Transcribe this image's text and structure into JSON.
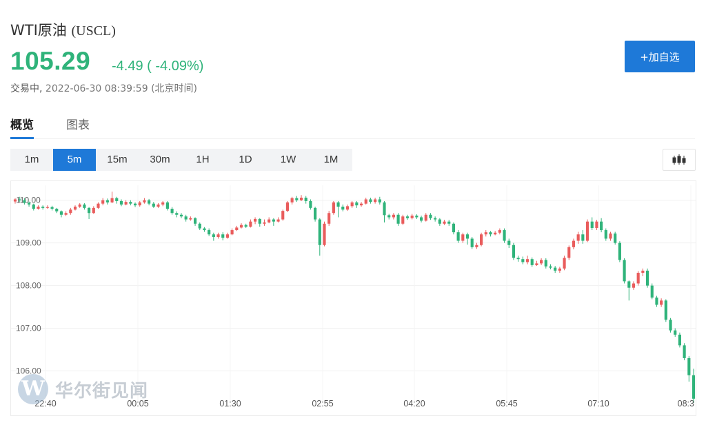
{
  "header": {
    "name": "WTI原油",
    "symbol": "(USCL)",
    "price": "105.29",
    "change": "-4.49 ( -4.09%)",
    "status": "交易中,",
    "timestamp": "2022-06-30 08:39:59",
    "timezone": "(北京时间)",
    "add_button": "+加自选",
    "up_color": "#e95c5c",
    "down_color": "#2fb37a"
  },
  "tabs": [
    {
      "label": "概览",
      "active": true
    },
    {
      "label": "图表",
      "active": false
    }
  ],
  "intervals": [
    {
      "label": "1m",
      "active": false
    },
    {
      "label": "5m",
      "active": true
    },
    {
      "label": "15m",
      "active": false
    },
    {
      "label": "30m",
      "active": false
    },
    {
      "label": "1H",
      "active": false
    },
    {
      "label": "1D",
      "active": false
    },
    {
      "label": "1W",
      "active": false
    },
    {
      "label": "1M",
      "active": false
    }
  ],
  "chart_type_icon": "candlestick-icon",
  "watermark": {
    "logo_letter": "W",
    "text": "华尔街见闻"
  },
  "chart_data": {
    "type": "candlestick",
    "x_tick_labels": [
      "22:40",
      "00:05",
      "01:30",
      "02:55",
      "04:20",
      "05:45",
      "07:10",
      "08:3"
    ],
    "y_ticks": [
      106.0,
      107.0,
      108.0,
      109.0,
      110.0
    ],
    "y_tick_labels": [
      "106.00",
      "107.00",
      "108.00",
      "109.00",
      "110.00"
    ],
    "ylim": [
      105.25,
      110.35
    ],
    "grid": true,
    "last_price": 105.29,
    "candles": [
      [
        109.97,
        110.02,
        109.92,
        110.05
      ],
      [
        110.02,
        110.0,
        109.96,
        110.08
      ],
      [
        110.0,
        109.94,
        109.9,
        110.05
      ],
      [
        109.94,
        109.9,
        109.85,
        109.97
      ],
      [
        109.9,
        109.8,
        109.76,
        109.92
      ],
      [
        109.8,
        109.85,
        109.78,
        109.88
      ],
      [
        109.85,
        109.82,
        109.78,
        109.88
      ],
      [
        109.82,
        109.84,
        109.8,
        109.88
      ],
      [
        109.84,
        109.8,
        109.76,
        109.87
      ],
      [
        109.8,
        109.74,
        109.7,
        109.82
      ],
      [
        109.74,
        109.66,
        109.6,
        109.76
      ],
      [
        109.66,
        109.7,
        109.63,
        109.74
      ],
      [
        109.7,
        109.78,
        109.66,
        109.82
      ],
      [
        109.78,
        109.85,
        109.76,
        109.88
      ],
      [
        109.85,
        109.9,
        109.82,
        109.93
      ],
      [
        109.9,
        109.82,
        109.78,
        109.93
      ],
      [
        109.82,
        109.7,
        109.56,
        109.84
      ],
      [
        109.7,
        109.82,
        109.68,
        109.86
      ],
      [
        109.82,
        109.92,
        109.8,
        109.95
      ],
      [
        109.92,
        110.0,
        109.88,
        110.05
      ],
      [
        110.0,
        109.95,
        109.9,
        110.04
      ],
      [
        109.95,
        110.05,
        109.93,
        110.2
      ],
      [
        110.05,
        109.98,
        109.92,
        110.08
      ],
      [
        109.98,
        109.9,
        109.86,
        110.02
      ],
      [
        109.9,
        109.96,
        109.88,
        110.0
      ],
      [
        109.96,
        109.92,
        109.88,
        110.0
      ],
      [
        109.92,
        109.88,
        109.84,
        109.95
      ],
      [
        109.88,
        109.95,
        109.85,
        109.98
      ],
      [
        109.95,
        110.0,
        109.92,
        110.05
      ],
      [
        110.0,
        109.92,
        109.88,
        110.03
      ],
      [
        109.92,
        109.85,
        109.82,
        109.96
      ],
      [
        109.85,
        109.9,
        109.82,
        109.93
      ],
      [
        109.9,
        109.95,
        109.86,
        109.98
      ],
      [
        109.95,
        109.8,
        109.76,
        109.98
      ],
      [
        109.8,
        109.7,
        109.66,
        109.84
      ],
      [
        109.7,
        109.66,
        109.6,
        109.74
      ],
      [
        109.66,
        109.62,
        109.58,
        109.7
      ],
      [
        109.62,
        109.55,
        109.5,
        109.66
      ],
      [
        109.55,
        109.58,
        109.52,
        109.62
      ],
      [
        109.58,
        109.45,
        109.4,
        109.6
      ],
      [
        109.45,
        109.34,
        109.3,
        109.48
      ],
      [
        109.34,
        109.3,
        109.26,
        109.37
      ],
      [
        109.3,
        109.2,
        109.16,
        109.34
      ],
      [
        109.2,
        109.14,
        109.05,
        109.24
      ],
      [
        109.14,
        109.2,
        109.1,
        109.24
      ],
      [
        109.2,
        109.12,
        109.06,
        109.25
      ],
      [
        109.12,
        109.2,
        109.1,
        109.24
      ],
      [
        109.2,
        109.3,
        109.18,
        109.34
      ],
      [
        109.3,
        109.36,
        109.28,
        109.4
      ],
      [
        109.36,
        109.42,
        109.34,
        109.46
      ],
      [
        109.42,
        109.38,
        109.35,
        109.45
      ],
      [
        109.38,
        109.5,
        109.36,
        109.55
      ],
      [
        109.5,
        109.56,
        109.44,
        109.6
      ],
      [
        109.56,
        109.45,
        109.38,
        109.58
      ],
      [
        109.45,
        109.48,
        109.4,
        109.55
      ],
      [
        109.48,
        109.55,
        109.46,
        109.6
      ],
      [
        109.55,
        109.5,
        109.4,
        109.58
      ],
      [
        109.5,
        109.55,
        109.48,
        109.6
      ],
      [
        109.55,
        109.75,
        109.52,
        109.78
      ],
      [
        109.75,
        109.95,
        109.72,
        109.98
      ],
      [
        109.95,
        110.05,
        109.9,
        110.08
      ],
      [
        110.05,
        110.0,
        109.96,
        110.1
      ],
      [
        110.0,
        110.06,
        109.98,
        110.12
      ],
      [
        110.06,
        109.98,
        109.92,
        110.1
      ],
      [
        109.98,
        109.82,
        109.78,
        110.02
      ],
      [
        109.82,
        109.55,
        109.5,
        109.85
      ],
      [
        109.55,
        108.95,
        108.7,
        109.58
      ],
      [
        108.95,
        109.45,
        108.92,
        109.5
      ],
      [
        109.45,
        109.7,
        109.4,
        109.75
      ],
      [
        109.7,
        109.95,
        109.66,
        109.98
      ],
      [
        109.95,
        109.85,
        109.6,
        109.98
      ],
      [
        109.85,
        109.78,
        109.74,
        109.9
      ],
      [
        109.78,
        109.86,
        109.75,
        109.9
      ],
      [
        109.86,
        109.95,
        109.82,
        109.98
      ],
      [
        109.95,
        109.88,
        109.82,
        109.98
      ],
      [
        109.88,
        109.92,
        109.85,
        109.96
      ],
      [
        109.92,
        110.02,
        109.9,
        110.06
      ],
      [
        110.02,
        109.96,
        109.92,
        110.06
      ],
      [
        109.96,
        110.02,
        109.92,
        110.06
      ],
      [
        110.02,
        109.95,
        109.9,
        110.08
      ],
      [
        109.95,
        109.65,
        109.48,
        109.98
      ],
      [
        109.65,
        109.6,
        109.55,
        109.68
      ],
      [
        109.6,
        109.66,
        109.55,
        109.7
      ],
      [
        109.66,
        109.45,
        109.4,
        109.7
      ],
      [
        109.45,
        109.62,
        109.42,
        109.66
      ],
      [
        109.62,
        109.58,
        109.54,
        109.66
      ],
      [
        109.58,
        109.64,
        109.55,
        109.68
      ],
      [
        109.64,
        109.6,
        109.56,
        109.67
      ],
      [
        109.6,
        109.52,
        109.48,
        109.64
      ],
      [
        109.52,
        109.66,
        109.5,
        109.7
      ],
      [
        109.66,
        109.58,
        109.54,
        109.7
      ],
      [
        109.58,
        109.55,
        109.5,
        109.62
      ],
      [
        109.55,
        109.45,
        109.4,
        109.58
      ],
      [
        109.45,
        109.5,
        109.42,
        109.54
      ],
      [
        109.5,
        109.45,
        109.4,
        109.54
      ],
      [
        109.45,
        109.25,
        109.2,
        109.48
      ],
      [
        109.25,
        109.05,
        109.0,
        109.3
      ],
      [
        109.05,
        109.2,
        109.0,
        109.24
      ],
      [
        109.2,
        109.1,
        108.96,
        109.24
      ],
      [
        109.1,
        108.9,
        108.86,
        109.14
      ],
      [
        108.9,
        108.95,
        108.86,
        109.0
      ],
      [
        108.95,
        109.2,
        108.92,
        109.24
      ],
      [
        109.2,
        109.25,
        109.15,
        109.3
      ],
      [
        109.25,
        109.2,
        109.15,
        109.28
      ],
      [
        109.2,
        109.24,
        109.18,
        109.28
      ],
      [
        109.24,
        109.3,
        109.2,
        109.34
      ],
      [
        109.3,
        109.05,
        109.0,
        109.34
      ],
      [
        109.05,
        108.95,
        108.88,
        109.1
      ],
      [
        108.95,
        108.65,
        108.6,
        109.0
      ],
      [
        108.65,
        108.62,
        108.56,
        108.7
      ],
      [
        108.62,
        108.55,
        108.5,
        108.68
      ],
      [
        108.55,
        108.62,
        108.5,
        108.7
      ],
      [
        108.62,
        108.48,
        108.44,
        108.66
      ],
      [
        108.48,
        108.52,
        108.46,
        108.58
      ],
      [
        108.52,
        108.6,
        108.48,
        108.64
      ],
      [
        108.6,
        108.45,
        108.4,
        108.64
      ],
      [
        108.45,
        108.42,
        108.38,
        108.5
      ],
      [
        108.42,
        108.35,
        108.3,
        108.46
      ],
      [
        108.35,
        108.4,
        108.3,
        108.44
      ],
      [
        108.4,
        108.65,
        108.36,
        108.7
      ],
      [
        108.65,
        108.9,
        108.6,
        108.94
      ],
      [
        108.9,
        109.05,
        108.85,
        109.1
      ],
      [
        109.05,
        109.2,
        108.98,
        109.26
      ],
      [
        109.2,
        109.05,
        108.98,
        109.3
      ],
      [
        109.05,
        109.5,
        109.02,
        109.55
      ],
      [
        109.5,
        109.35,
        109.3,
        109.6
      ],
      [
        109.35,
        109.5,
        109.3,
        109.54
      ],
      [
        109.5,
        109.3,
        109.25,
        109.58
      ],
      [
        109.3,
        109.1,
        109.05,
        109.34
      ],
      [
        109.1,
        109.22,
        109.05,
        109.26
      ],
      [
        109.22,
        109.0,
        108.96,
        109.26
      ],
      [
        109.0,
        108.6,
        108.55,
        109.04
      ],
      [
        108.6,
        108.1,
        108.05,
        108.64
      ],
      [
        108.1,
        107.95,
        107.65,
        108.12
      ],
      [
        107.95,
        108.05,
        107.9,
        108.1
      ],
      [
        108.05,
        108.3,
        108.0,
        108.34
      ],
      [
        108.3,
        108.35,
        108.22,
        108.4
      ],
      [
        108.35,
        108.0,
        107.95,
        108.4
      ],
      [
        108.0,
        107.72,
        107.68,
        108.05
      ],
      [
        107.72,
        107.55,
        107.5,
        107.76
      ],
      [
        107.55,
        107.65,
        107.5,
        107.7
      ],
      [
        107.65,
        107.2,
        107.15,
        107.68
      ],
      [
        107.2,
        106.95,
        106.9,
        107.24
      ],
      [
        106.95,
        106.85,
        106.8,
        107.0
      ],
      [
        106.85,
        106.6,
        106.55,
        106.9
      ],
      [
        106.6,
        106.3,
        106.25,
        106.65
      ],
      [
        106.3,
        105.9,
        105.75,
        106.35
      ],
      [
        105.9,
        105.35,
        105.25,
        106.05
      ]
    ]
  }
}
